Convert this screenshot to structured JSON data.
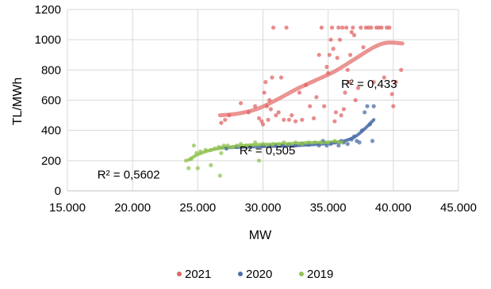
{
  "chart_data": {
    "type": "scatter",
    "xlabel": "MW",
    "ylabel": "TL/MWh",
    "xlim": [
      15000,
      45000
    ],
    "ylim": [
      0,
      1200
    ],
    "x_ticks": [
      "15.000",
      "20.000",
      "25.000",
      "30.000",
      "35.000",
      "40.000",
      "45.000"
    ],
    "y_ticks": [
      "0",
      "200",
      "400",
      "600",
      "800",
      "1000",
      "1200"
    ],
    "grid": "vertical and horizontal",
    "legend": "bottom",
    "series": [
      {
        "name": "2021",
        "color": "#e06666",
        "trend_color": "#e8817f",
        "r2": "R² = 0,433",
        "points": [
          [
            26800,
            450
          ],
          [
            27100,
            470
          ],
          [
            27400,
            500
          ],
          [
            28300,
            580
          ],
          [
            28900,
            520
          ],
          [
            29400,
            560
          ],
          [
            29700,
            480
          ],
          [
            29900,
            460
          ],
          [
            30000,
            440
          ],
          [
            30100,
            650
          ],
          [
            30200,
            720
          ],
          [
            30300,
            560
          ],
          [
            30400,
            470
          ],
          [
            30500,
            600
          ],
          [
            30600,
            540
          ],
          [
            30700,
            750
          ],
          [
            30800,
            1080
          ],
          [
            31000,
            500
          ],
          [
            31200,
            520
          ],
          [
            31400,
            750
          ],
          [
            31600,
            470
          ],
          [
            31800,
            1080
          ],
          [
            32000,
            470
          ],
          [
            32200,
            500
          ],
          [
            32500,
            460
          ],
          [
            32800,
            650
          ],
          [
            33000,
            470
          ],
          [
            33300,
            700
          ],
          [
            33600,
            560
          ],
          [
            33900,
            480
          ],
          [
            34100,
            620
          ],
          [
            34300,
            900
          ],
          [
            34500,
            1080
          ],
          [
            34700,
            560
          ],
          [
            34900,
            820
          ],
          [
            35000,
            780
          ],
          [
            35100,
            900
          ],
          [
            35200,
            1000
          ],
          [
            35300,
            1080
          ],
          [
            35400,
            940
          ],
          [
            35500,
            460
          ],
          [
            35600,
            520
          ],
          [
            35700,
            880
          ],
          [
            35800,
            1080
          ],
          [
            35900,
            1000
          ],
          [
            36000,
            500
          ],
          [
            36100,
            1080
          ],
          [
            36200,
            540
          ],
          [
            36300,
            650
          ],
          [
            36400,
            1080
          ],
          [
            36500,
            800
          ],
          [
            36600,
            720
          ],
          [
            36700,
            900
          ],
          [
            36800,
            1050
          ],
          [
            36900,
            1080
          ],
          [
            37000,
            1030
          ],
          [
            37100,
            600
          ],
          [
            37300,
            680
          ],
          [
            37500,
            1080
          ],
          [
            37700,
            950
          ],
          [
            37900,
            1080
          ],
          [
            38100,
            1080
          ],
          [
            38300,
            1080
          ],
          [
            38500,
            720
          ],
          [
            38700,
            1080
          ],
          [
            38900,
            1080
          ],
          [
            39100,
            1080
          ],
          [
            39300,
            750
          ],
          [
            39500,
            1080
          ],
          [
            39700,
            1080
          ],
          [
            39900,
            640
          ],
          [
            40000,
            560
          ],
          [
            40200,
            720
          ],
          [
            40600,
            800
          ]
        ],
        "trend": [
          [
            26700,
            500
          ],
          [
            28000,
            510
          ],
          [
            29500,
            540
          ],
          [
            31000,
            600
          ],
          [
            32500,
            670
          ],
          [
            34000,
            730
          ],
          [
            35500,
            790
          ],
          [
            37000,
            870
          ],
          [
            38500,
            950
          ],
          [
            39500,
            980
          ],
          [
            40700,
            975
          ]
        ]
      },
      {
        "name": "2020",
        "color": "#4e6fa8",
        "trend_color": "#4e6fa8",
        "r2": "R² = 0,505",
        "points": [
          [
            27200,
            280
          ],
          [
            28000,
            290
          ],
          [
            29000,
            290
          ],
          [
            30000,
            300
          ],
          [
            30500,
            295
          ],
          [
            31000,
            300
          ],
          [
            31500,
            300
          ],
          [
            32000,
            305
          ],
          [
            32500,
            300
          ],
          [
            33000,
            310
          ],
          [
            33500,
            305
          ],
          [
            34000,
            310
          ],
          [
            34300,
            300
          ],
          [
            34600,
            330
          ],
          [
            34900,
            300
          ],
          [
            35200,
            310
          ],
          [
            35500,
            320
          ],
          [
            35800,
            300
          ],
          [
            36000,
            330
          ],
          [
            36200,
            320
          ],
          [
            36500,
            310
          ],
          [
            36800,
            340
          ],
          [
            37000,
            360
          ],
          [
            37200,
            330
          ],
          [
            37400,
            320
          ],
          [
            37600,
            400
          ],
          [
            37800,
            520
          ],
          [
            38000,
            560
          ],
          [
            38200,
            440
          ],
          [
            38400,
            330
          ],
          [
            38500,
            560
          ]
        ],
        "trend": [
          [
            26700,
            285
          ],
          [
            28500,
            290
          ],
          [
            30500,
            295
          ],
          [
            32500,
            300
          ],
          [
            34500,
            310
          ],
          [
            36000,
            325
          ],
          [
            37000,
            355
          ],
          [
            37800,
            410
          ],
          [
            38500,
            470
          ]
        ]
      },
      {
        "name": "2019",
        "color": "#92c353",
        "trend_color": "#92c353",
        "r2": "R² = 0,5602",
        "points": [
          [
            24100,
            200
          ],
          [
            24300,
            150
          ],
          [
            24500,
            210
          ],
          [
            24700,
            300
          ],
          [
            24900,
            250
          ],
          [
            25200,
            260
          ],
          [
            25600,
            270
          ],
          [
            26000,
            270
          ],
          [
            26300,
            280
          ],
          [
            26600,
            290
          ],
          [
            26700,
            100
          ],
          [
            27000,
            300
          ],
          [
            27300,
            300
          ],
          [
            27700,
            290
          ],
          [
            28000,
            300
          ],
          [
            28300,
            310
          ],
          [
            28700,
            300
          ],
          [
            29000,
            300
          ],
          [
            29400,
            320
          ],
          [
            29700,
            200
          ],
          [
            30000,
            310
          ],
          [
            30400,
            300
          ],
          [
            30800,
            310
          ],
          [
            31200,
            310
          ],
          [
            31600,
            320
          ],
          [
            32000,
            310
          ],
          [
            32500,
            320
          ],
          [
            33000,
            310
          ],
          [
            33500,
            320
          ],
          [
            34000,
            320
          ],
          [
            34500,
            320
          ],
          [
            35000,
            320
          ],
          [
            35500,
            330
          ],
          [
            36000,
            320
          ],
          [
            25000,
            150
          ],
          [
            26000,
            170
          ],
          [
            26800,
            250
          ]
        ],
        "trend": [
          [
            24300,
            205
          ],
          [
            25000,
            240
          ],
          [
            26000,
            270
          ],
          [
            27500,
            290
          ],
          [
            29500,
            305
          ],
          [
            31500,
            310
          ],
          [
            33500,
            318
          ],
          [
            36200,
            325
          ]
        ]
      }
    ]
  }
}
